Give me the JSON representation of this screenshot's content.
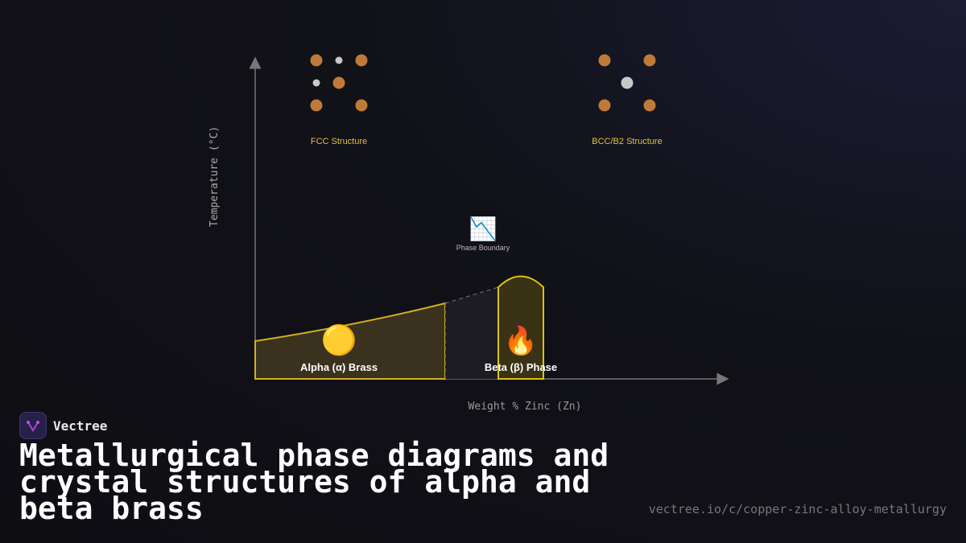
{
  "diagram": {
    "y_axis_label": "Temperature (°C)",
    "x_axis_label": "Weight % Zinc (Zn)",
    "fcc_label": "FCC Structure",
    "bcc_label": "BCC/B2 Structure",
    "boundary_label": "Phase Boundary",
    "boundary_icon": "📉",
    "alpha_label": "Alpha (α) Brass",
    "alpha_icon": "🟡",
    "beta_label": "Beta (β) Phase",
    "beta_icon": "🔥",
    "colors": {
      "copper_atom": "#c07a38",
      "zinc_atom": "#c8c8c8",
      "phase_outline": "#d4b020",
      "label": "#e0c040"
    }
  },
  "brand": {
    "name": "Vectree"
  },
  "title": "Metallurgical phase diagrams and crystal structures of alpha and beta brass",
  "url": "vectree.io/c/copper-zinc-alloy-metallurgy"
}
